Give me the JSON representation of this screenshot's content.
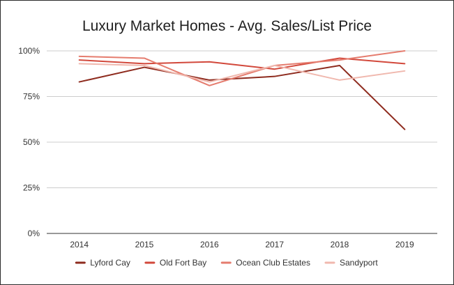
{
  "chart_data": {
    "type": "line",
    "title": "Luxury Market Homes - Avg. Sales/List Price",
    "xlabel": "",
    "ylabel": "",
    "categories": [
      "2014",
      "2015",
      "2016",
      "2017",
      "2018",
      "2019"
    ],
    "y_ticks": [
      "0%",
      "25%",
      "50%",
      "75%",
      "100%"
    ],
    "ylim": [
      0,
      100
    ],
    "grid": true,
    "legend_position": "bottom",
    "series": [
      {
        "name": "Lyford Cay",
        "color": "#8e2b1e",
        "values": [
          83,
          91,
          84,
          86,
          92,
          57
        ]
      },
      {
        "name": "Old Fort Bay",
        "color": "#d2483b",
        "values": [
          95,
          93,
          94,
          90,
          96,
          93
        ]
      },
      {
        "name": "Ocean Club Estates",
        "color": "#e57c6e",
        "values": [
          97,
          96,
          81,
          92,
          95,
          100
        ]
      },
      {
        "name": "Sandyport",
        "color": "#f0b8ae",
        "values": [
          93,
          92,
          83,
          92,
          84,
          89
        ]
      }
    ]
  }
}
